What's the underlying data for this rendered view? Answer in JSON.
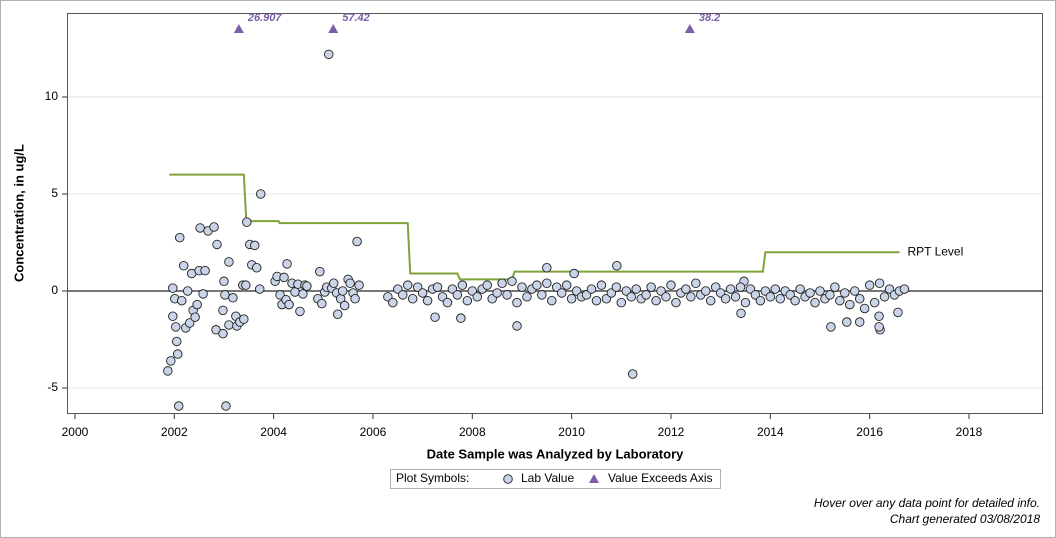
{
  "chart_data": {
    "type": "scatter",
    "x_label": "Date Sample was Analyzed by Laboratory",
    "y_label": "Concentration, in ug/L",
    "xlim": [
      1999.84,
      2019.49
    ],
    "ylim": [
      -6.34,
      14.33
    ],
    "xticks": [
      2000,
      2002,
      2004,
      2006,
      2008,
      2010,
      2012,
      2014,
      2016,
      2018
    ],
    "yticks": [
      -5,
      0,
      5,
      10
    ],
    "grid": true,
    "legend_title": "Plot Symbols:",
    "legend_position": "bottom",
    "series": [
      {
        "name": "Lab Value",
        "color": "#c9d4e8",
        "x": [
          2001.87,
          2001.93,
          2001.97,
          2001.97,
          2002.01,
          2002.03,
          2002.05,
          2002.07,
          2002.09,
          2002.11,
          2002.15,
          2002.19,
          2002.23,
          2002.27,
          2002.31,
          2002.35,
          2002.38,
          2002.42,
          2002.46,
          2002.5,
          2002.52,
          2002.58,
          2002.62,
          2002.68,
          2002.8,
          2002.84,
          2002.86,
          2002.98,
          2002.98,
          2003.0,
          2003.02,
          2003.04,
          2003.1,
          2003.1,
          2003.18,
          2003.24,
          2003.26,
          2003.32,
          2003.38,
          2003.4,
          2003.44,
          2003.46,
          2003.52,
          2003.56,
          2003.62,
          2003.66,
          2003.72,
          2003.74,
          2004.03,
          2004.07,
          2004.13,
          2004.17,
          2004.21,
          2004.25,
          2004.27,
          2004.31,
          2004.37,
          2004.43,
          2004.49,
          2004.53,
          2004.59,
          2004.63,
          2004.67,
          2004.89,
          2004.93,
          2004.97,
          2005.03,
          2005.07,
          2005.11,
          2005.17,
          2005.21,
          2005.27,
          2005.29,
          2005.35,
          2005.39,
          2005.43,
          2005.5,
          2005.54,
          2005.6,
          2005.64,
          2005.68,
          2005.72,
          2007.25,
          2007.77,
          2008.9,
          2009.5,
          2010.05,
          2010.91,
          2011.23,
          2013.41,
          2013.47,
          2015.22,
          2015.54,
          2015.8,
          2016.21,
          2016.19,
          2016.57,
          2016.19,
          2006.3,
          2006.4,
          2006.5,
          2006.6,
          2006.7,
          2006.8,
          2006.9,
          2007.0,
          2007.1,
          2007.2,
          2007.3,
          2007.4,
          2007.5,
          2007.6,
          2007.7,
          2007.8,
          2007.9,
          2008.0,
          2008.1,
          2008.2,
          2008.3,
          2008.4,
          2008.5,
          2008.6,
          2008.7,
          2008.8,
          2008.9,
          2009.0,
          2009.1,
          2009.2,
          2009.3,
          2009.4,
          2009.5,
          2009.6,
          2009.7,
          2009.8,
          2009.9,
          2010.0,
          2010.1,
          2010.2,
          2010.3,
          2010.4,
          2010.5,
          2010.6,
          2010.7,
          2010.8,
          2010.9,
          2011.0,
          2011.1,
          2011.2,
          2011.3,
          2011.4,
          2011.5,
          2011.6,
          2011.7,
          2011.8,
          2011.9,
          2012.0,
          2012.1,
          2012.2,
          2012.3,
          2012.4,
          2012.5,
          2012.6,
          2012.7,
          2012.8,
          2012.9,
          2013.0,
          2013.1,
          2013.2,
          2013.3,
          2013.4,
          2013.5,
          2013.6,
          2013.7,
          2013.8,
          2013.9,
          2014.0,
          2014.1,
          2014.2,
          2014.3,
          2014.4,
          2014.5,
          2014.6,
          2014.7,
          2014.8,
          2014.9,
          2015.0,
          2015.1,
          2015.2,
          2015.3,
          2015.4,
          2015.5,
          2015.6,
          2015.7,
          2015.8,
          2015.9,
          2016.0,
          2016.1,
          2016.2,
          2016.3,
          2016.4,
          2016.5,
          2016.6,
          2016.7
        ],
        "values": [
          -4.12,
          -3.6,
          0.15,
          -1.3,
          -0.4,
          -1.85,
          -2.6,
          -3.25,
          -5.93,
          2.75,
          -0.5,
          1.3,
          -1.9,
          0,
          -1.65,
          0.9,
          -1.0,
          -1.35,
          -0.7,
          1.05,
          3.25,
          -0.15,
          1.05,
          3.1,
          3.3,
          -2.0,
          2.4,
          -1.0,
          -2.2,
          0.5,
          -0.2,
          -5.93,
          1.5,
          -1.75,
          -0.35,
          -1.3,
          -1.8,
          -1.6,
          0.3,
          -1.45,
          0.3,
          3.55,
          2.4,
          1.35,
          2.35,
          1.2,
          0.1,
          5.0,
          0.5,
          0.75,
          -0.2,
          -0.7,
          0.7,
          -0.45,
          1.4,
          -0.7,
          0.4,
          -0.05,
          0.35,
          -1.05,
          -0.15,
          0.3,
          0.25,
          -0.4,
          1.0,
          -0.65,
          -0.05,
          0.2,
          12.2,
          0.15,
          0.4,
          -0.1,
          -1.2,
          -0.4,
          0,
          -0.75,
          0.6,
          0.4,
          -0.1,
          -0.4,
          2.55,
          0.3,
          -1.35,
          -1.4,
          -1.8,
          1.2,
          0.9,
          1.3,
          -4.28,
          -1.15,
          0.5,
          -1.85,
          -1.6,
          -1.6,
          -2.0,
          -1.3,
          -1.1,
          -1.85,
          -0.3,
          -0.6,
          0.1,
          -0.2,
          0.3,
          -0.4,
          0.2,
          -0.1,
          -0.5,
          0.1,
          0.2,
          -0.3,
          -0.6,
          0.1,
          -0.2,
          0.3,
          -0.5,
          0.0,
          -0.3,
          0.1,
          0.3,
          -0.4,
          -0.1,
          0.4,
          -0.2,
          0.5,
          -0.6,
          0.2,
          -0.3,
          0.1,
          0.3,
          -0.2,
          0.4,
          -0.5,
          0.2,
          -0.1,
          0.3,
          -0.4,
          0.0,
          -0.3,
          -0.2,
          0.1,
          -0.5,
          0.3,
          -0.4,
          -0.1,
          0.2,
          -0.6,
          0.0,
          -0.3,
          0.1,
          -0.4,
          -0.2,
          0.2,
          -0.5,
          0.0,
          -0.3,
          0.3,
          -0.6,
          -0.1,
          0.1,
          -0.3,
          0.4,
          -0.2,
          0.0,
          -0.5,
          0.2,
          -0.1,
          -0.4,
          0.1,
          -0.3,
          0.2,
          -0.6,
          0.1,
          -0.2,
          -0.5,
          0.0,
          -0.3,
          0.1,
          -0.4,
          0.0,
          -0.2,
          -0.5,
          0.1,
          -0.3,
          -0.1,
          -0.6,
          0.0,
          -0.4,
          -0.2,
          0.2,
          -0.5,
          -0.1,
          -0.7,
          0.0,
          -0.4,
          -0.9,
          0.3,
          -0.6,
          0.4,
          -0.3,
          0.1,
          -0.2,
          0.0,
          0.1
        ]
      },
      {
        "name": "Value Exceeds Axis",
        "color": "#7b5ea7",
        "x": [
          2003.3,
          2005.2,
          2012.38
        ],
        "values": [
          26.907,
          57.42,
          38.2
        ]
      },
      {
        "name": "RPT Level",
        "color": "#7ea33a",
        "x": [
          2001.9,
          2003.4,
          2003.45,
          2004.1,
          2004.12,
          2006.7,
          2006.75,
          2007.7,
          2007.75,
          2008.8,
          2008.85,
          2013.85,
          2013.9,
          2016.6
        ],
        "values": [
          6,
          6,
          3.6,
          3.6,
          3.5,
          3.5,
          0.9,
          0.9,
          0.6,
          0.6,
          1.0,
          1.0,
          2.0,
          2.0
        ]
      }
    ],
    "footnotes": [
      "Hover over any data point for detailed info.",
      "Chart generated 03/08/2018"
    ]
  }
}
